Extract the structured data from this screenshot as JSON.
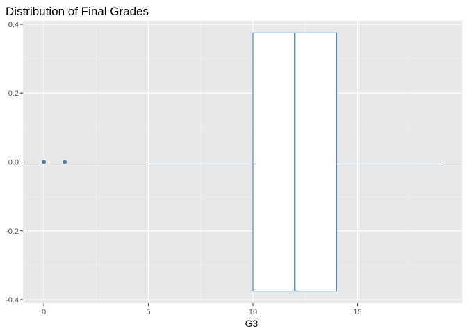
{
  "chart_data": {
    "type": "boxplot",
    "title": "Distribution of Final Grades",
    "xlabel": "G3",
    "ylabel": "",
    "xlim": [
      -1,
      20
    ],
    "ylim": [
      -0.41,
      0.41
    ],
    "x_ticks": [
      0,
      5,
      10,
      15
    ],
    "y_ticks": [
      -0.4,
      -0.2,
      0.0,
      0.2,
      0.4
    ],
    "y_tick_labels": [
      "-0.4",
      "-0.2",
      "0.0",
      "0.2",
      "0.4"
    ],
    "grid": true,
    "box": {
      "whisker_low": 5,
      "q1": 10,
      "median": 12,
      "q3": 14,
      "whisker_high": 19,
      "y_center": 0.0,
      "y_halfwidth": 0.375
    },
    "outliers": [
      {
        "x": 0,
        "y": 0
      },
      {
        "x": 1,
        "y": 0
      }
    ],
    "colors": {
      "panel": "#e8e8e8",
      "grid_major": "#ffffff",
      "grid_minor": "#f2f2f2",
      "box_stroke": "#4682b4",
      "box_fill": "#ffffff",
      "outlier": "#4682b4"
    }
  }
}
